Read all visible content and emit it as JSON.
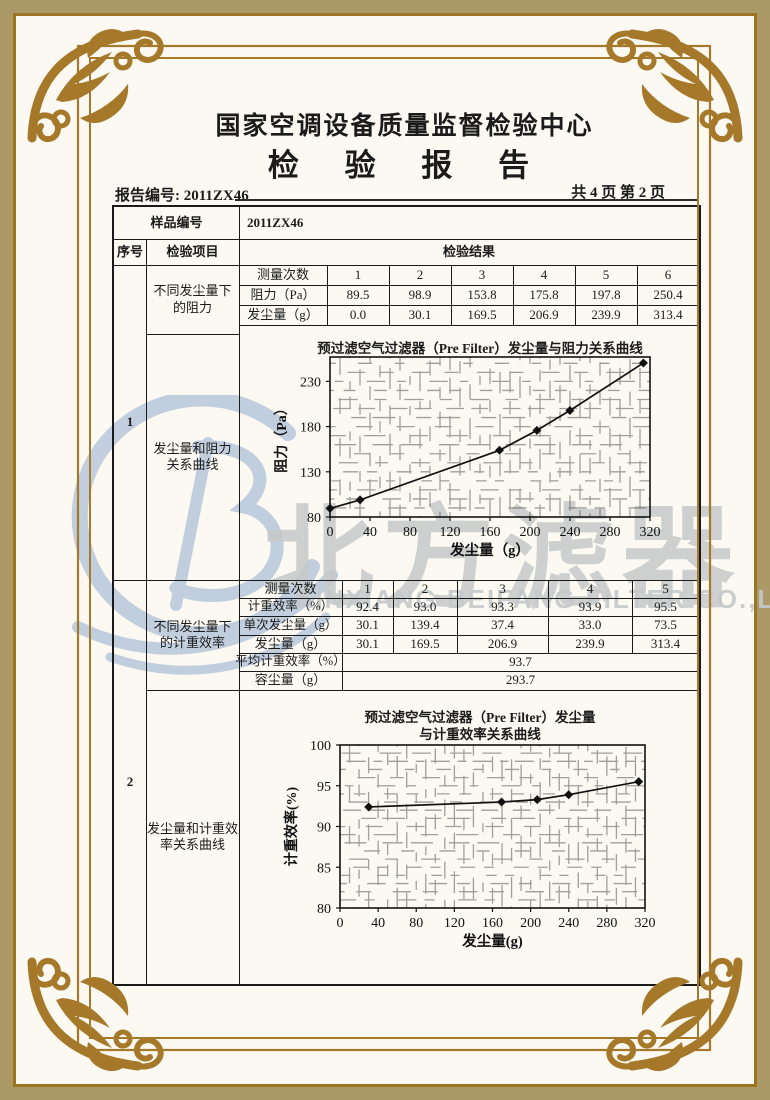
{
  "page": {
    "center_name": "国家空调设备质量监督检验中心",
    "report_title": "检 验 报 告",
    "report_no_label": "报告编号:",
    "report_no": "2011ZX46",
    "page_info": "共 4 页 第 2 页"
  },
  "watermark": {
    "logo": "beifang-b-swoosh-logo",
    "brand": "北方滤器",
    "company": "XINXIANG BEIFANG FILTER CO.,LTD.",
    "brand_color": "#c7cacb",
    "logo_color": "#b8c7da"
  },
  "frame": {
    "gold": "#a6782a",
    "band": "#ac9968"
  },
  "table": {
    "sample_no_label": "样品编号",
    "sample_no": "2011ZX46",
    "col_seq": "序号",
    "col_item": "检验项目",
    "col_result": "检验结果",
    "section1": {
      "seq": "1",
      "item_measure_line1": "不同发尘量下",
      "item_measure_line2": "的阻力",
      "item_curve_line1": "发尘量和阻力",
      "item_curve_line2": "关系曲线",
      "count_label": "测量次数",
      "resistance_label": "阻力（Pa）",
      "dust_label": "发尘量（g）",
      "counts": [
        "1",
        "2",
        "3",
        "4",
        "5",
        "6"
      ],
      "resistance": [
        "89.5",
        "98.9",
        "153.8",
        "175.8",
        "197.8",
        "250.4"
      ],
      "dust": [
        "0.0",
        "30.1",
        "169.5",
        "206.9",
        "239.9",
        "313.4"
      ]
    },
    "section2": {
      "seq": "2",
      "item_measure_line1": "不同发尘量下",
      "item_measure_line2": "的计重效率",
      "item_curve_line1": "发尘量和计重效",
      "item_curve_line2": "率关系曲线",
      "count_label": "测量次数",
      "efficiency_label": "计重效率（%）",
      "single_dust_label": "单次发尘量（g）",
      "dust_label": "发尘量（g）",
      "avg_label": "平均计重效率（%）",
      "capacity_label": "容尘量（g）",
      "counts": [
        "1",
        "2",
        "3",
        "4",
        "5"
      ],
      "efficiency": [
        "92.4",
        "93.0",
        "93.3",
        "93.9",
        "95.5"
      ],
      "single_dust": [
        "30.1",
        "139.4",
        "37.4",
        "33.0",
        "73.5"
      ],
      "dust": [
        "30.1",
        "169.5",
        "206.9",
        "239.9",
        "313.4"
      ],
      "avg_value": "93.7",
      "capacity_value": "293.7"
    }
  },
  "chart_data": [
    {
      "type": "line",
      "title": "预过滤空气过滤器（Pre Filter）发尘量与阻力关系曲线",
      "xlabel": "发尘量（g）",
      "ylabel": "阻力（Pa）",
      "x": [
        0,
        30.1,
        169.5,
        206.9,
        239.9,
        313.4
      ],
      "y": [
        89.5,
        98.9,
        153.8,
        175.8,
        197.8,
        250.4
      ],
      "xlim": [
        0,
        320
      ],
      "ylim": [
        80,
        257
      ],
      "xticks": [
        0,
        40,
        80,
        120,
        160,
        200,
        240,
        280,
        320
      ],
      "yticks": [
        80,
        130,
        180,
        230
      ],
      "minor_x": 10,
      "minor_y": 10,
      "grid": true,
      "legend": "none",
      "marker": "diamond"
    },
    {
      "type": "line",
      "title": "预过滤空气过滤器（Pre Filter）发尘量与计重效率关系曲线",
      "title_lines": [
        "预过滤空气过滤器（Pre Filter）发尘量",
        "与计重效率关系曲线"
      ],
      "xlabel": "发尘量(g)",
      "ylabel": "计重效率(%)",
      "x": [
        30.1,
        169.5,
        206.9,
        239.9,
        313.4
      ],
      "y": [
        92.4,
        93.0,
        93.3,
        93.9,
        95.5
      ],
      "xlim": [
        0,
        320
      ],
      "ylim": [
        80,
        100
      ],
      "xticks": [
        0,
        40,
        80,
        120,
        160,
        200,
        240,
        280,
        320
      ],
      "yticks": [
        80,
        85,
        90,
        95,
        100
      ],
      "minor_x": 10,
      "minor_y": 1,
      "grid": true,
      "legend": "none",
      "marker": "diamond"
    }
  ]
}
